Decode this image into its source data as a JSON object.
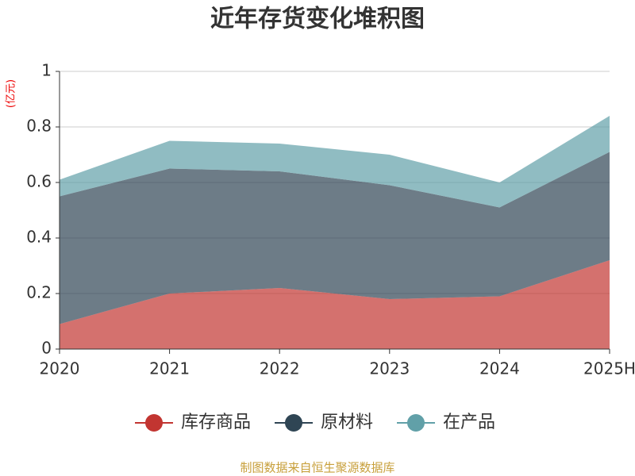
{
  "chart_data": {
    "type": "stacked-area",
    "title": "近年存货变化堆积图",
    "y_unit": "(亿元)",
    "categories": [
      "2020",
      "2021",
      "2022",
      "2023",
      "2024",
      "2025H"
    ],
    "series": [
      {
        "name": "库存商品",
        "color": "#c23531",
        "values": [
          0.09,
          0.2,
          0.22,
          0.18,
          0.19,
          0.32
        ]
      },
      {
        "name": "原材料",
        "color": "#2f4554",
        "values": [
          0.46,
          0.45,
          0.42,
          0.41,
          0.32,
          0.39
        ]
      },
      {
        "name": "在产品",
        "color": "#61a0a8",
        "values": [
          0.06,
          0.1,
          0.1,
          0.11,
          0.09,
          0.13
        ]
      }
    ],
    "ylim": [
      0,
      1
    ],
    "yticks": [
      0,
      0.2,
      0.4,
      0.6,
      0.8,
      1
    ],
    "grid": true,
    "source": "制图数据来自恒生聚源数据库"
  }
}
